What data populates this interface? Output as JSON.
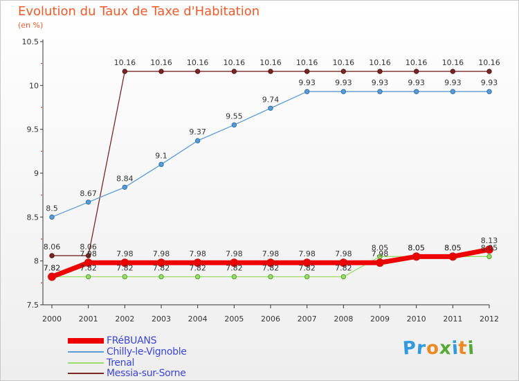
{
  "chart_data": {
    "type": "line",
    "title": "Evolution du Taux de Taxe d'Habitation",
    "subtitle": "(en %)",
    "xlabel": "",
    "ylabel": "",
    "x": [
      "2000",
      "2001",
      "2002",
      "2003",
      "2004",
      "2005",
      "2006",
      "2007",
      "2008",
      "2009",
      "2010",
      "2011",
      "2012"
    ],
    "ylim": [
      7.5,
      10.5
    ],
    "yticks": [
      7.5,
      8,
      8.5,
      9,
      9.5,
      10,
      10.5
    ],
    "ytick_labels": [
      "7.5",
      "8",
      "8.5",
      "9",
      "9.5",
      "10",
      "10.5"
    ],
    "grid": false,
    "legend_position": "bottom-left",
    "series": [
      {
        "name": "FRéBUANS",
        "color": "#ee0000",
        "values": [
          7.82,
          7.98,
          7.98,
          7.98,
          7.98,
          7.98,
          7.98,
          7.98,
          7.98,
          7.98,
          8.05,
          8.05,
          8.13
        ],
        "labels": [
          "7.82",
          "7.98",
          "7.98",
          "7.98",
          "7.98",
          "7.98",
          "7.98",
          "7.98",
          "7.98",
          "7.98",
          "8.05",
          "8.05",
          "8.13"
        ]
      },
      {
        "name": "Chilly-le-Vignoble",
        "color": "#5b9bd5",
        "values": [
          8.5,
          8.67,
          8.84,
          9.1,
          9.37,
          9.55,
          9.74,
          9.93,
          9.93,
          9.93,
          9.93,
          9.93,
          9.93
        ],
        "labels": [
          "8.5",
          "8.67",
          "8.84",
          "9.1",
          "9.37",
          "9.55",
          "9.74",
          "9.93",
          "9.93",
          "9.93",
          "9.93",
          "9.93",
          "9.93"
        ]
      },
      {
        "name": "Trenal",
        "color": "#99dd66",
        "values": [
          7.82,
          7.82,
          7.82,
          7.82,
          7.82,
          7.82,
          7.82,
          7.82,
          7.82,
          8.05,
          8.05,
          8.05,
          8.05
        ],
        "labels": [
          "7.82",
          "7.82",
          "7.82",
          "7.82",
          "7.82",
          "7.82",
          "7.82",
          "7.82",
          "7.82",
          "8.05",
          "8.05",
          "8.05",
          "8.05"
        ]
      },
      {
        "name": "Messia-sur-Sorne",
        "color": "#7b2626",
        "values": [
          8.06,
          8.06,
          10.16,
          10.16,
          10.16,
          10.16,
          10.16,
          10.16,
          10.16,
          10.16,
          10.16,
          10.16,
          10.16
        ],
        "labels": [
          "8.06",
          "8.06",
          "10.16",
          "10.16",
          "10.16",
          "10.16",
          "10.16",
          "10.16",
          "10.16",
          "10.16",
          "10.16",
          "10.16",
          "10.16"
        ]
      }
    ]
  },
  "logo": {
    "letters": [
      "P",
      "r",
      "o",
      "x",
      "i",
      "t",
      "i"
    ],
    "colors": [
      "#3399dd",
      "#3399dd",
      "#ee8822",
      "#55aa33",
      "#3399dd",
      "#ee8822",
      "#55aa33"
    ]
  }
}
